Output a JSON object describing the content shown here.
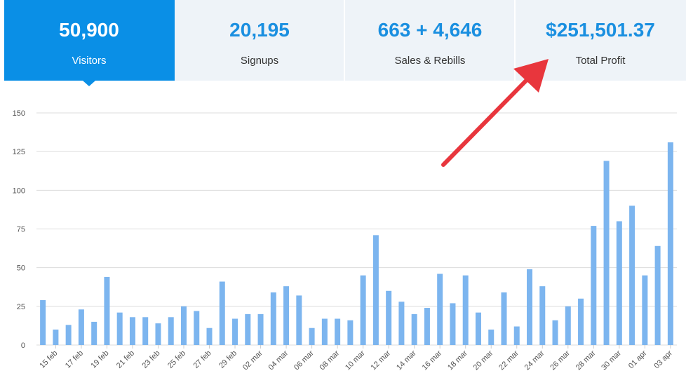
{
  "stats": [
    {
      "value": "50,900",
      "label": "Visitors"
    },
    {
      "value": "20,195",
      "label": "Signups"
    },
    {
      "value": "663 + 4,646",
      "label": "Sales & Rebills"
    },
    {
      "value": "$251,501.37",
      "label": "Total Profit"
    }
  ],
  "chart_data": {
    "type": "bar",
    "categories": [
      null,
      "15 feb",
      null,
      "17 feb",
      null,
      "19 feb",
      null,
      "21 feb",
      null,
      "23 feb",
      null,
      "25 feb",
      null,
      "27 feb",
      null,
      "29 feb",
      null,
      "02 mar",
      null,
      "04 mar",
      null,
      "06 mar",
      null,
      "08 mar",
      null,
      "10 mar",
      null,
      "12 mar",
      null,
      "14 mar",
      null,
      "16 mar",
      null,
      "18 mar",
      null,
      "20 mar",
      null,
      "22 mar",
      null,
      "24 mar",
      null,
      "26 mar",
      null,
      "28 mar",
      null,
      "30 mar",
      null,
      "01 apr",
      null,
      "03 apr"
    ],
    "values": [
      29,
      10,
      13,
      23,
      15,
      44,
      21,
      18,
      18,
      14,
      18,
      25,
      22,
      11,
      41,
      17,
      20,
      20,
      34,
      38,
      32,
      11,
      17,
      17,
      16,
      45,
      71,
      35,
      28,
      20,
      24,
      46,
      27,
      45,
      21,
      10,
      34,
      12,
      49,
      38,
      16,
      25,
      30,
      77,
      119,
      80,
      90,
      45,
      64,
      131
    ],
    "color": "#7cb5ef",
    "ylim": [
      0,
      150
    ],
    "yticks": [
      0,
      25,
      50,
      75,
      100,
      125,
      150
    ],
    "grid": true
  }
}
